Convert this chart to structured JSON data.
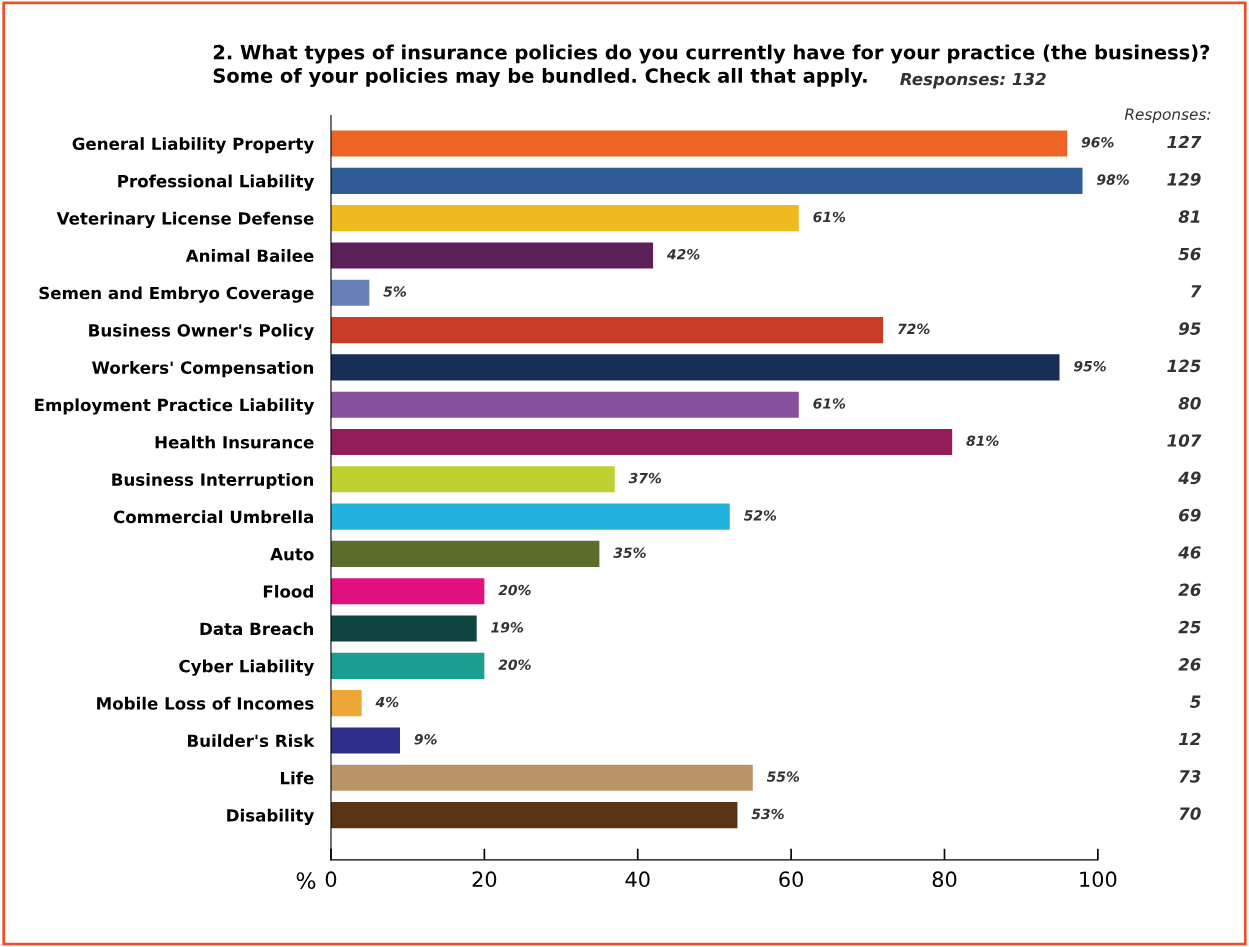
{
  "chart_data": {
    "type": "bar",
    "orientation": "horizontal",
    "title": "2. What types of insurance policies do you currently have for your practice (the business)?\nSome of your policies may be bundled. Check all that apply.",
    "xlabel": "%",
    "categories": [
      "General Liability Property",
      "Professional Liability",
      "Veterinary License Defense",
      "Animal Bailee",
      "Semen and Embryo Coverage",
      "Business Owner's Policy",
      "Workers' Compensation",
      "Employment Practice Liability",
      "Health Insurance",
      "Business Interruption",
      "Commercial Umbrella",
      "Auto",
      "Flood",
      "Data Breach",
      "Cyber Liability",
      "Mobile Loss of Incomes",
      "Builder's Risk",
      "Life",
      "Disability"
    ],
    "values": [
      96,
      98,
      61,
      42,
      5,
      72,
      95,
      61,
      81,
      37,
      52,
      35,
      20,
      19,
      20,
      4,
      9,
      55,
      53
    ],
    "value_labels": [
      "96%",
      "98%",
      "61%",
      "42%",
      "5%",
      "72%",
      "95%",
      "61%",
      "81%",
      "37%",
      "52%",
      "35%",
      "20%",
      "19%",
      "20%",
      "4%",
      "9%",
      "55%",
      "53%"
    ],
    "colors": [
      "#ee6424",
      "#2f5c96",
      "#efb920",
      "#5c1f5a",
      "#6581b8",
      "#c93e26",
      "#172e56",
      "#87509c",
      "#921d58",
      "#c0d030",
      "#22b3dd",
      "#5c6e2e",
      "#e0107f",
      "#0f4540",
      "#1a9e90",
      "#eda737",
      "#2e2e88",
      "#b99468",
      "#5a3214"
    ],
    "xlim": [
      0,
      100
    ],
    "xticks": [
      0,
      20,
      40,
      60,
      80,
      100
    ],
    "annotations": [
      "Responses: 132",
      "Responses:",
      "127",
      "129",
      "81",
      "56",
      "7",
      "95",
      "125",
      "80",
      "107",
      "49",
      "69",
      "46",
      "26",
      "25",
      "26",
      "5",
      "12",
      "73",
      "70"
    ]
  }
}
